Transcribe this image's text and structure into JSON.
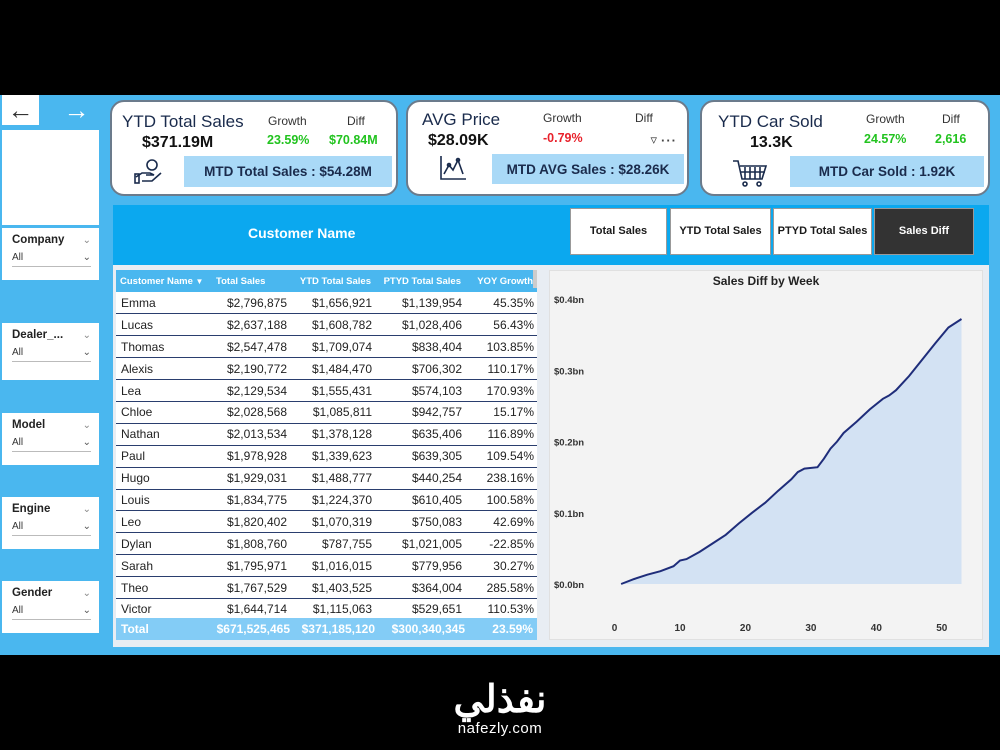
{
  "nav": {
    "back": "←",
    "forward": "→"
  },
  "slicers": [
    {
      "label": "Company",
      "value": "All"
    },
    {
      "label": "Dealer_...",
      "value": "All"
    },
    {
      "label": "Model",
      "value": "All"
    },
    {
      "label": "Engine",
      "value": "All"
    },
    {
      "label": "Gender",
      "value": "All"
    }
  ],
  "kpi": {
    "sales": {
      "title": "YTD Total Sales",
      "value": "$371.19M",
      "growth_label": "Growth",
      "growth": "23.59%",
      "diff_label": "Diff",
      "diff": "$70.84M",
      "mtd": "MTD Total Sales : $54.28M",
      "icon": "money-hand-icon"
    },
    "price": {
      "title": "AVG Price",
      "value": "$28.09K",
      "growth_label": "Growth",
      "growth": "-0.79%",
      "diff_label": "Diff",
      "mtd": "MTD AVG Sales : $28.26K",
      "icon": "chart-icon"
    },
    "cars": {
      "title": "YTD Car Sold",
      "value": "13.3K",
      "growth_label": "Growth",
      "growth": "24.57%",
      "diff_label": "Diff",
      "diff": "2,616",
      "mtd": "MTD Car Sold : 1.92K",
      "icon": "cart-icon"
    }
  },
  "colors": {
    "green": "#22c31f",
    "red": "#e8212b",
    "header_blue": "#0ba8ef",
    "accent": "#4ab7ef",
    "line": "#1f2d7a"
  },
  "main": {
    "header": "Customer Name",
    "toggles": [
      "Total Sales",
      "YTD Total Sales",
      "PTYD Total Sales",
      "Sales Diff"
    ]
  },
  "table": {
    "columns": [
      "Customer Name",
      "Total Sales",
      "YTD Total Sales",
      "PTYD Total Sales",
      "YOY Growth"
    ],
    "rows": [
      [
        "Emma",
        "$2,796,875",
        "$1,656,921",
        "$1,139,954",
        "45.35%"
      ],
      [
        "Lucas",
        "$2,637,188",
        "$1,608,782",
        "$1,028,406",
        "56.43%"
      ],
      [
        "Thomas",
        "$2,547,478",
        "$1,709,074",
        "$838,404",
        "103.85%"
      ],
      [
        "Alexis",
        "$2,190,772",
        "$1,484,470",
        "$706,302",
        "110.17%"
      ],
      [
        "Lea",
        "$2,129,534",
        "$1,555,431",
        "$574,103",
        "170.93%"
      ],
      [
        "Chloe",
        "$2,028,568",
        "$1,085,811",
        "$942,757",
        "15.17%"
      ],
      [
        "Nathan",
        "$2,013,534",
        "$1,378,128",
        "$635,406",
        "116.89%"
      ],
      [
        "Paul",
        "$1,978,928",
        "$1,339,623",
        "$639,305",
        "109.54%"
      ],
      [
        "Hugo",
        "$1,929,031",
        "$1,488,777",
        "$440,254",
        "238.16%"
      ],
      [
        "Louis",
        "$1,834,775",
        "$1,224,370",
        "$610,405",
        "100.58%"
      ],
      [
        "Leo",
        "$1,820,402",
        "$1,070,319",
        "$750,083",
        "42.69%"
      ],
      [
        "Dylan",
        "$1,808,760",
        "$787,755",
        "$1,021,005",
        "-22.85%"
      ],
      [
        "Sarah",
        "$1,795,971",
        "$1,016,015",
        "$779,956",
        "30.27%"
      ],
      [
        "Theo",
        "$1,767,529",
        "$1,403,525",
        "$364,004",
        "285.58%"
      ],
      [
        "Victor",
        "$1,644,714",
        "$1,115,063",
        "$529,651",
        "110.53%"
      ]
    ],
    "total": [
      "Total",
      "$671,525,465",
      "$371,185,120",
      "$300,340,345",
      "23.59%"
    ]
  },
  "chart_data": {
    "type": "area",
    "title": "Sales Diff by Week",
    "xlabel": "",
    "ylabel": "",
    "ytick_labels": [
      "$0.0bn",
      "$0.1bn",
      "$0.2bn",
      "$0.3bn",
      "$0.4bn"
    ],
    "yticks": [
      0,
      0.1,
      0.2,
      0.3,
      0.4
    ],
    "xticks": [
      0,
      10,
      20,
      30,
      40,
      50
    ],
    "xlim": [
      -1,
      54
    ],
    "ylim": [
      0,
      0.4
    ],
    "x": [
      1,
      3,
      5,
      7,
      9,
      10,
      11,
      13,
      15,
      17,
      19,
      21,
      23,
      25,
      27,
      28,
      29,
      31,
      32,
      33,
      34,
      35,
      37,
      39,
      41,
      42,
      43,
      45,
      47,
      49,
      51,
      53
    ],
    "y": [
      0.0,
      0.007,
      0.013,
      0.018,
      0.025,
      0.033,
      0.035,
      0.045,
      0.057,
      0.069,
      0.085,
      0.1,
      0.114,
      0.131,
      0.147,
      0.157,
      0.162,
      0.164,
      0.176,
      0.19,
      0.2,
      0.212,
      0.228,
      0.245,
      0.26,
      0.265,
      0.272,
      0.292,
      0.315,
      0.338,
      0.36,
      0.372
    ]
  },
  "footer": {
    "arabic": "نفذلي",
    "site": "nafezly.com"
  }
}
